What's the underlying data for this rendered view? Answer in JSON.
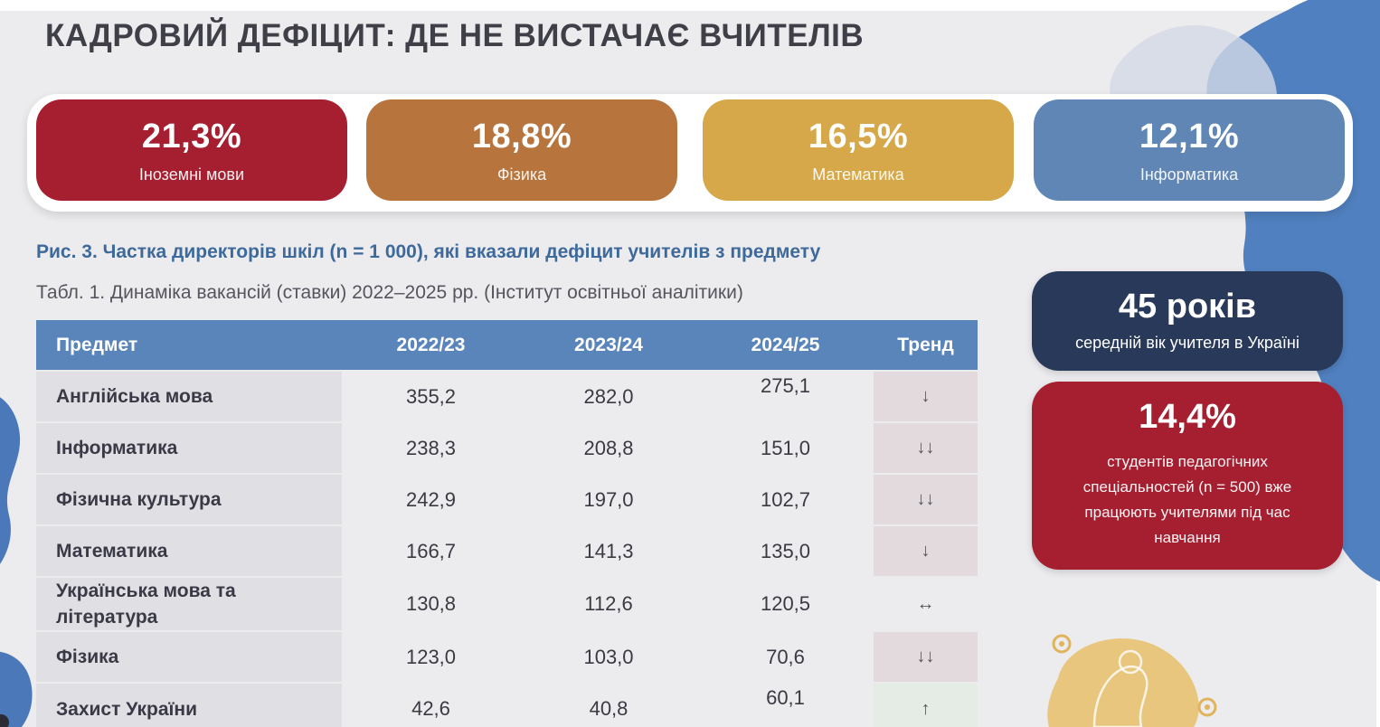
{
  "slide": {
    "title": "КАДРОВИЙ ДЕФІЦИТ: ДЕ НЕ ВИСТАЧАЄ ВЧИТЕЛІВ"
  },
  "kpis": [
    {
      "value": "21,3%",
      "label": "Іноземні мови",
      "color": "#a51f30"
    },
    {
      "value": "18,8%",
      "label": "Фізика",
      "color": "#b8743d"
    },
    {
      "value": "16,5%",
      "label": "Математика",
      "color": "#d6a84a"
    },
    {
      "value": "12,1%",
      "label": "Інформатика",
      "color": "#5f86b5"
    }
  ],
  "captions": {
    "figure": "Рис. 3. Частка директорів шкіл (n = 1 000), які вказали дефіцит учителів з предмету",
    "table": "Табл. 1. Динаміка вакансій (ставки) 2022–2025 рр. (Інститут освітньої аналітики)"
  },
  "table": {
    "headers": [
      "Предмет",
      "2022/23",
      "2023/24",
      "2024/25",
      "Тренд"
    ],
    "rows": [
      {
        "subject": "Англійська мова",
        "y2022": "355,2",
        "y2023": "282,0",
        "y2024": "275,1",
        "trend": "↓"
      },
      {
        "subject": "Інформатика",
        "y2022": "238,3",
        "y2023": "208,8",
        "y2024": "151,0",
        "trend": "↓↓"
      },
      {
        "subject": "Фізична культура",
        "y2022": "242,9",
        "y2023": "197,0",
        "y2024": "102,7",
        "trend": "↓↓"
      },
      {
        "subject": "Математика",
        "y2022": "166,7",
        "y2023": "141,3",
        "y2024": "135,0",
        "trend": "↓"
      },
      {
        "subject": "Українська мова та література",
        "y2022": "130,8",
        "y2023": "112,6",
        "y2024": "120,5",
        "trend": "↔"
      },
      {
        "subject": "Фізика",
        "y2022": "123,0",
        "y2023": "103,0",
        "y2024": "70,6",
        "trend": "↓↓"
      },
      {
        "subject": "Захист України",
        "y2022": "42,6",
        "y2023": "40,8",
        "y2024": "60,1",
        "trend": "↑"
      }
    ]
  },
  "side_cards": {
    "age": {
      "value": "45 років",
      "label": "середній вік учителя в Україні",
      "color": "#28395a"
    },
    "students": {
      "value": "14,4%",
      "label": "студентів педагогічних спеціальностей (n = 500) вже працюють учителями під час навчання",
      "color": "#a51f30"
    }
  },
  "icons": {
    "decor": "teacher-illustration-icon"
  }
}
